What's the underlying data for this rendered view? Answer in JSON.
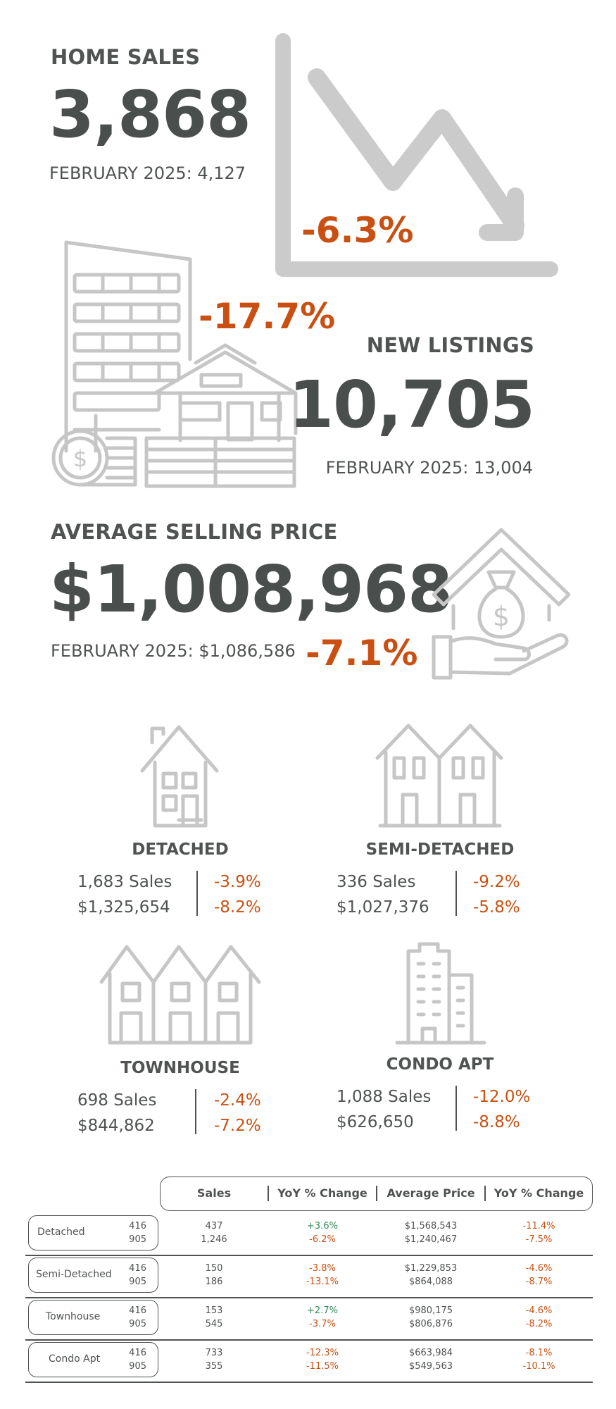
{
  "home_sales": {
    "label": "HOME SALES",
    "value": "3,868",
    "comparison": "FEBRUARY 2025: 4,127",
    "change": "-6.3%",
    "icon": "trend-down-chart-icon"
  },
  "new_listings": {
    "label": "NEW LISTINGS",
    "value": "10,705",
    "comparison": "FEBRUARY 2025: 13,004",
    "change": "-17.7%",
    "icon": "buildings-house-coins-icon"
  },
  "avg_price": {
    "label": "AVERAGE SELLING PRICE",
    "value": "$1,008,968",
    "comparison": "FEBRUARY 2025: $1,086,586",
    "change": "-7.1%",
    "icon": "hand-house-money-bag-icon"
  },
  "property_types": [
    {
      "title": "DETACHED",
      "sales": "1,683 Sales",
      "price": "$1,325,654",
      "sales_change": "-3.9%",
      "price_change": "-8.2%"
    },
    {
      "title": "SEMI-DETACHED",
      "sales": "336 Sales",
      "price": "$1,027,376",
      "sales_change": "-9.2%",
      "price_change": "-5.8%"
    },
    {
      "title": "TOWNHOUSE",
      "sales": "698 Sales",
      "price": "$844,862",
      "sales_change": "-2.4%",
      "price_change": "-7.2%"
    },
    {
      "title": "CONDO APT",
      "sales": "1,088 Sales",
      "price": "$626,650",
      "sales_change": "-12.0%",
      "price_change": "-8.8%"
    }
  ],
  "table": {
    "headers": [
      "Sales",
      "YoY % Change",
      "Average Price",
      "YoY % Change"
    ],
    "rows": [
      {
        "name": "Detached",
        "codes": [
          "416",
          "905"
        ],
        "sales": [
          "437",
          "1,246"
        ],
        "sales_yoy": [
          "+3.6%",
          "-6.2%"
        ],
        "price": [
          "$1,568,543",
          "$1,240,467"
        ],
        "price_yoy": [
          "-11.4%",
          "-7.5%"
        ]
      },
      {
        "name": "Semi-Detached",
        "codes": [
          "416",
          "905"
        ],
        "sales": [
          "150",
          "186"
        ],
        "sales_yoy": [
          "-3.8%",
          "-13.1%"
        ],
        "price": [
          "$1,229,853",
          "$864,088"
        ],
        "price_yoy": [
          "-4.6%",
          "-8.7%"
        ]
      },
      {
        "name": "Townhouse",
        "codes": [
          "416",
          "905"
        ],
        "sales": [
          "153",
          "545"
        ],
        "sales_yoy": [
          "+2.7%",
          "-3.7%"
        ],
        "price": [
          "$980,175",
          "$806,876"
        ],
        "price_yoy": [
          "-4.6%",
          "-8.2%"
        ]
      },
      {
        "name": "Condo Apt",
        "codes": [
          "416",
          "905"
        ],
        "sales": [
          "733",
          "355"
        ],
        "sales_yoy": [
          "-12.3%",
          "-11.5%"
        ],
        "price": [
          "$663,984",
          "$549,563"
        ],
        "price_yoy": [
          "-8.1%",
          "-10.1%"
        ]
      }
    ]
  },
  "colors": {
    "positive": "#2f8a55",
    "negative": "#c95012",
    "text": "#4a4e4d",
    "icon": "#c6c6c6"
  }
}
